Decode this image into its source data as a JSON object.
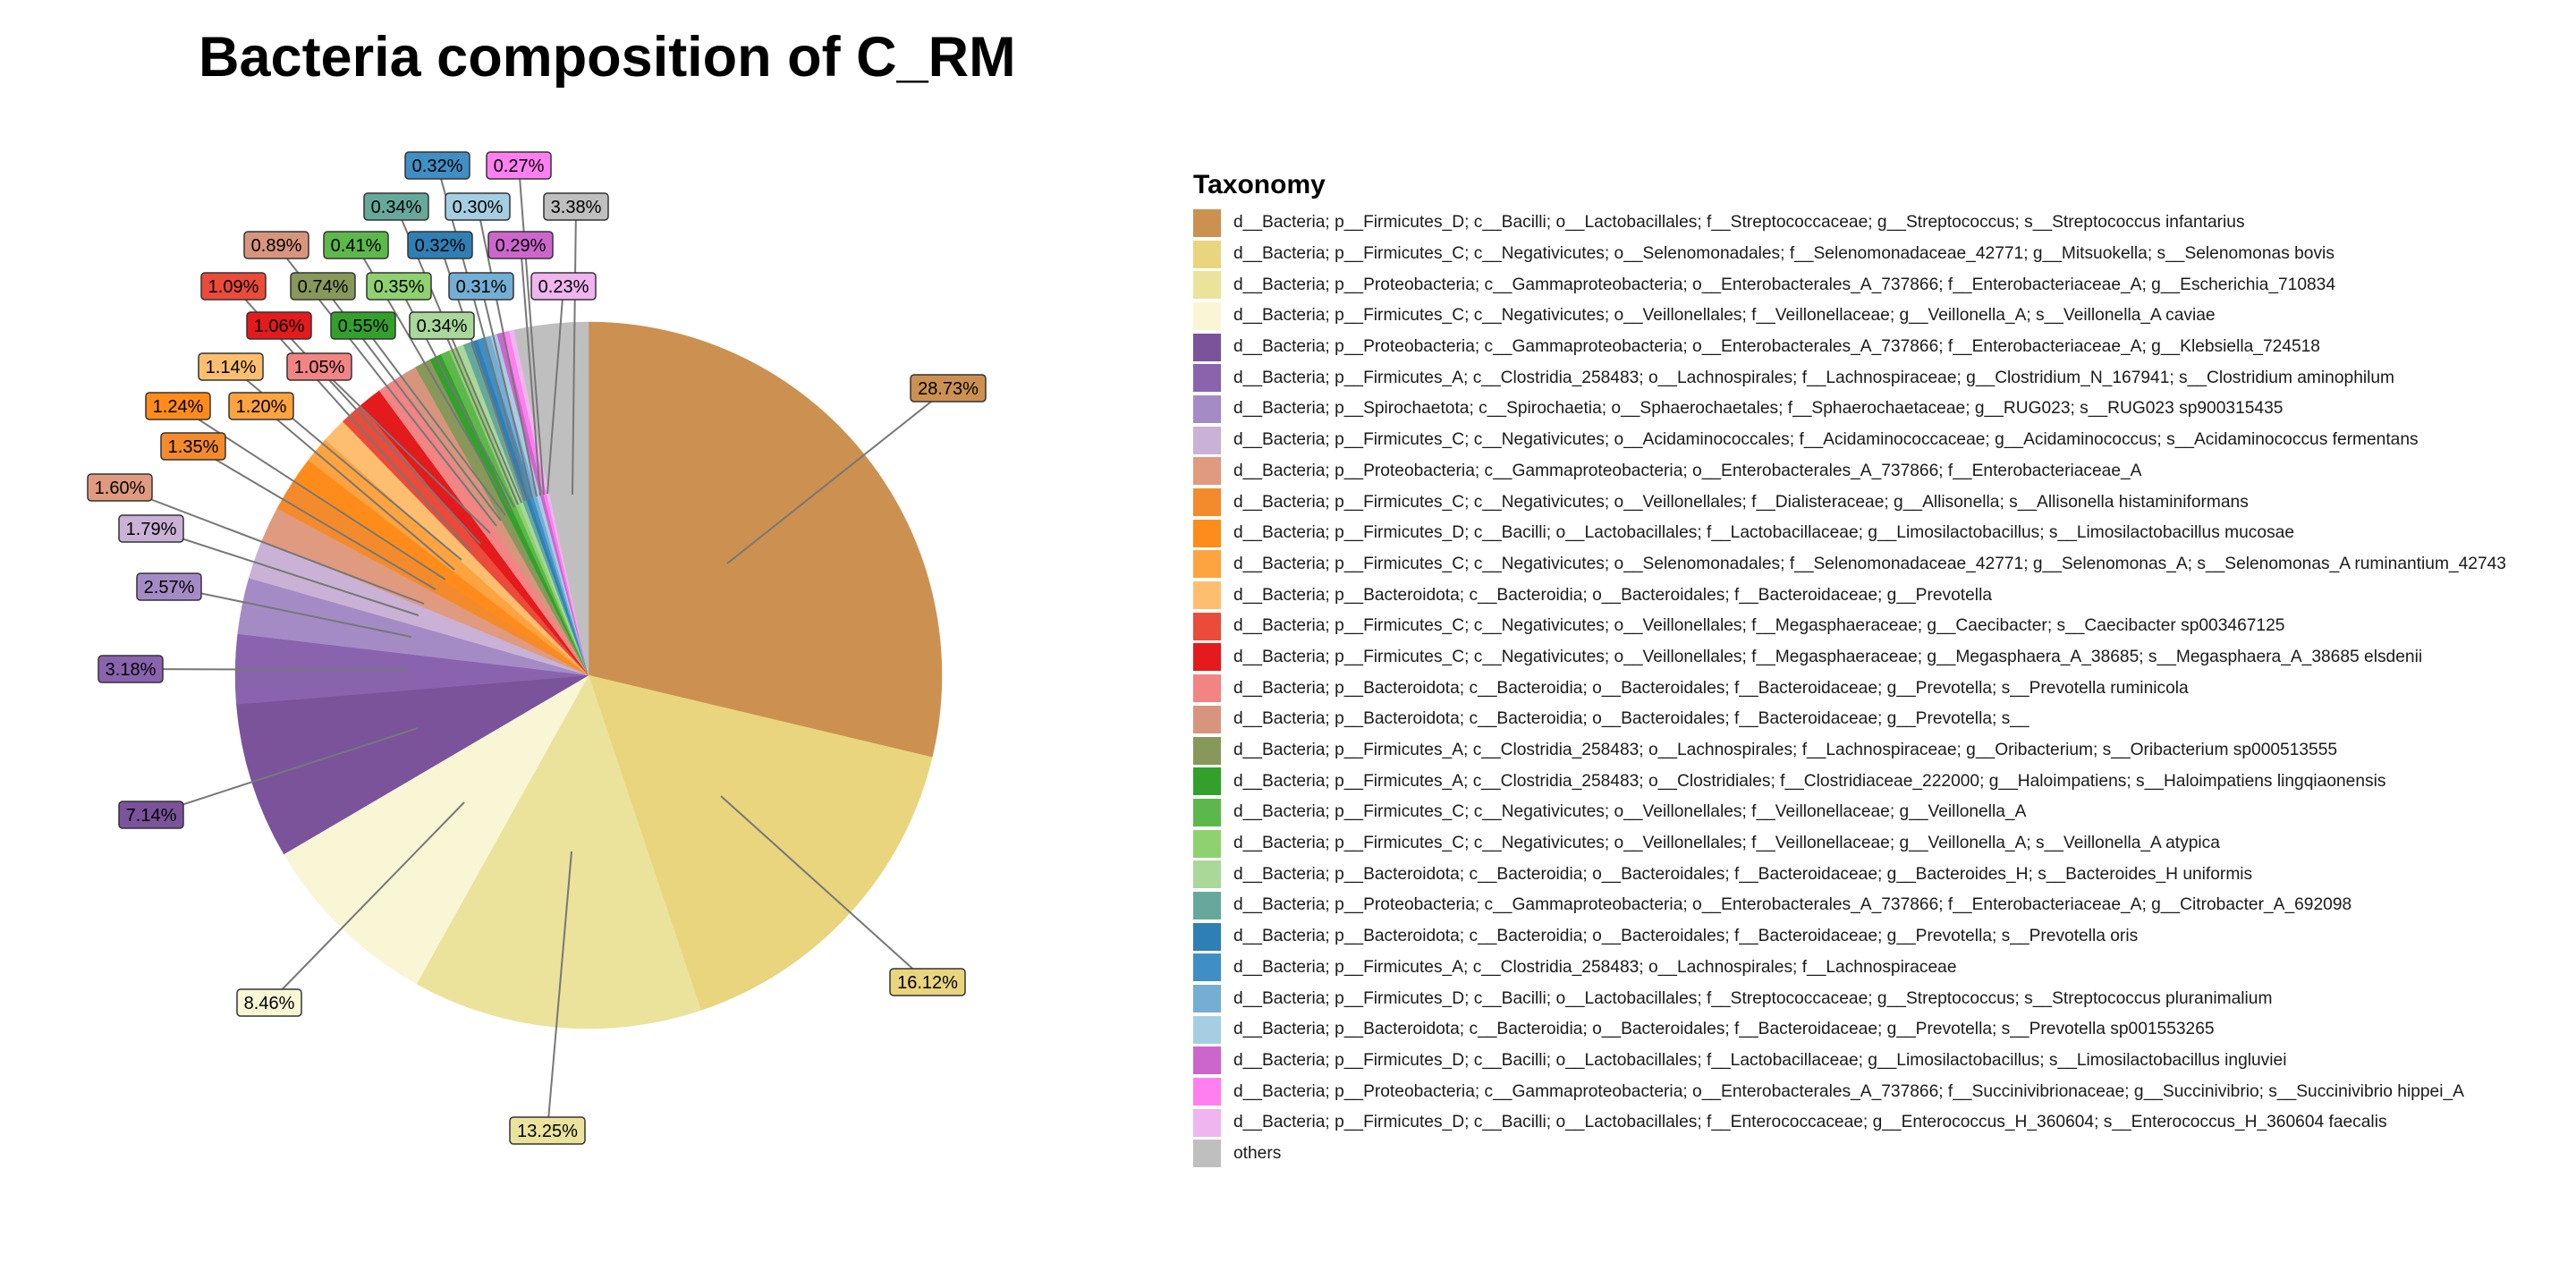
{
  "chart_data": {
    "type": "pie",
    "title": "Bacteria composition of C_RM",
    "legend_title": "Taxonomy",
    "legend_position": "right",
    "slices": [
      {
        "label": "d__Bacteria; p__Firmicutes_D; c__Bacilli; o__Lactobacillales; f__Streptococcaceae; g__Streptococcus; s__Streptococcus infantarius",
        "value": 28.73,
        "text": "28.73%",
        "color": "#CC9150"
      },
      {
        "label": "d__Bacteria; p__Firmicutes_C; c__Negativicutes; o__Selenomonadales; f__Selenomonadaceae_42771; g__Mitsuokella; s__Selenomonas bovis",
        "value": 16.12,
        "text": "16.12%",
        "color": "#E9D57E"
      },
      {
        "label": "d__Bacteria; p__Proteobacteria; c__Gammaproteobacteria; o__Enterobacterales_A_737866; f__Enterobacteriaceae_A; g__Escherichia_710834",
        "value": 13.25,
        "text": "13.25%",
        "color": "#EBE39C"
      },
      {
        "label": "d__Bacteria; p__Firmicutes_C; c__Negativicutes; o__Veillonellales; f__Veillonellaceae; g__Veillonella_A; s__Veillonella_A caviae",
        "value": 8.46,
        "text": "8.46%",
        "color": "#F8F6D5"
      },
      {
        "label": "d__Bacteria; p__Proteobacteria; c__Gammaproteobacteria; o__Enterobacterales_A_737866; f__Enterobacteriaceae_A; g__Klebsiella_724518",
        "value": 7.14,
        "text": "7.14%",
        "color": "#7A539B"
      },
      {
        "label": "d__Bacteria; p__Firmicutes_A; c__Clostridia_258483; o__Lachnospirales; f__Lachnospiraceae; g__Clostridium_N_167941; s__Clostridium aminophilum",
        "value": 3.18,
        "text": "3.18%",
        "color": "#8A63AE"
      },
      {
        "label": "d__Bacteria; p__Spirochaetota; c__Spirochaetia; o__Sphaerochaetales; f__Sphaerochaetaceae; g__RUG023; s__RUG023 sp900315435",
        "value": 2.57,
        "text": "2.57%",
        "color": "#A58BC6"
      },
      {
        "label": "d__Bacteria; p__Firmicutes_C; c__Negativicutes; o__Acidaminococcales; f__Acidaminococcaceae; g__Acidaminococcus; s__Acidaminococcus fermentans",
        "value": 1.79,
        "text": "1.79%",
        "color": "#C9B2D6"
      },
      {
        "label": "d__Bacteria; p__Proteobacteria; c__Gammaproteobacteria; o__Enterobacterales_A_737866; f__Enterobacteriaceae_A",
        "value": 1.6,
        "text": "1.60%",
        "color": "#E09A7F"
      },
      {
        "label": "d__Bacteria; p__Firmicutes_C; c__Negativicutes; o__Veillonellales; f__Dialisteraceae; g__Allisonella; s__Allisonella histaminiformans",
        "value": 1.35,
        "text": "1.35%",
        "color": "#F38B2C"
      },
      {
        "label": "d__Bacteria; p__Firmicutes_D; c__Bacilli; o__Lactobacillales; f__Lactobacillaceae; g__Limosilactobacillus; s__Limosilactobacillus mucosae",
        "value": 1.24,
        "text": "1.24%",
        "color": "#FF8C1A"
      },
      {
        "label": "d__Bacteria; p__Firmicutes_C; c__Negativicutes; o__Selenomonadales; f__Selenomonadaceae_42771; g__Selenomonas_A; s__Selenomonas_A ruminantium_42743",
        "value": 1.2,
        "text": "1.20%",
        "color": "#FDA33F"
      },
      {
        "label": "d__Bacteria; p__Bacteroidota; c__Bacteroidia; o__Bacteroidales; f__Bacteroidaceae; g__Prevotella",
        "value": 1.14,
        "text": "1.14%",
        "color": "#FDBF6F"
      },
      {
        "label": "d__Bacteria; p__Firmicutes_C; c__Negativicutes; o__Veillonellales; f__Megasphaeraceae; g__Caecibacter; s__Caecibacter sp003467125",
        "value": 1.09,
        "text": "1.09%",
        "color": "#EB4B3A"
      },
      {
        "label": "d__Bacteria; p__Firmicutes_C; c__Negativicutes; o__Veillonellales; f__Megasphaeraceae; g__Megasphaera_A_38685; s__Megasphaera_A_38685 elsdenii",
        "value": 1.06,
        "text": "1.06%",
        "color": "#E41A1C"
      },
      {
        "label": "d__Bacteria; p__Bacteroidota; c__Bacteroidia; o__Bacteroidales; f__Bacteroidaceae; g__Prevotella; s__Prevotella ruminicola",
        "value": 1.05,
        "text": "1.05%",
        "color": "#F28484"
      },
      {
        "label": "d__Bacteria; p__Bacteroidota; c__Bacteroidia; o__Bacteroidales; f__Bacteroidaceae; g__Prevotella; s__",
        "value": 0.89,
        "text": "0.89%",
        "color": "#D8957E"
      },
      {
        "label": "d__Bacteria; p__Firmicutes_A; c__Clostridia_258483; o__Lachnospirales; f__Lachnospiraceae; g__Oribacterium; s__Oribacterium sp000513555",
        "value": 0.74,
        "text": "0.74%",
        "color": "#87985A"
      },
      {
        "label": "d__Bacteria; p__Firmicutes_A; c__Clostridia_258483; o__Clostridiales; f__Clostridiaceae_222000; g__Haloimpatiens; s__Haloimpatiens lingqiaonensis",
        "value": 0.55,
        "text": "0.55%",
        "color": "#33A02C"
      },
      {
        "label": "d__Bacteria; p__Firmicutes_C; c__Negativicutes; o__Veillonellales; f__Veillonellaceae; g__Veillonella_A",
        "value": 0.41,
        "text": "0.41%",
        "color": "#5DB84B"
      },
      {
        "label": "d__Bacteria; p__Firmicutes_C; c__Negativicutes; o__Veillonellales; f__Veillonellaceae; g__Veillonella_A; s__Veillonella_A atypica",
        "value": 0.35,
        "text": "0.35%",
        "color": "#8FD16F"
      },
      {
        "label": "d__Bacteria; p__Bacteroidota; c__Bacteroidia; o__Bacteroidales; f__Bacteroidaceae; g__Bacteroides_H; s__Bacteroides_H uniformis",
        "value": 0.34,
        "text": "0.34%",
        "color": "#A9D89A"
      },
      {
        "label": "d__Bacteria; p__Proteobacteria; c__Gammaproteobacteria; o__Enterobacterales_A_737866; f__Enterobacteriaceae_A; g__Citrobacter_A_692098",
        "value": 0.34,
        "text": "0.34%",
        "color": "#66A99B"
      },
      {
        "label": "d__Bacteria; p__Bacteroidota; c__Bacteroidia; o__Bacteroidales; f__Bacteroidaceae; g__Prevotella; s__Prevotella oris",
        "value": 0.32,
        "text": "0.32%",
        "color": "#2E7FB3"
      },
      {
        "label": "d__Bacteria; p__Firmicutes_A; c__Clostridia_258483; o__Lachnospirales; f__Lachnospiraceae",
        "value": 0.32,
        "text": "0.32%",
        "color": "#3F8FC4"
      },
      {
        "label": "d__Bacteria; p__Firmicutes_D; c__Bacilli; o__Lactobacillales; f__Streptococcaceae; g__Streptococcus; s__Streptococcus pluranimalium",
        "value": 0.31,
        "text": "0.31%",
        "color": "#74AED4"
      },
      {
        "label": "d__Bacteria; p__Bacteroidota; c__Bacteroidia; o__Bacteroidales; f__Bacteroidaceae; g__Prevotella; s__Prevotella sp001553265",
        "value": 0.3,
        "text": "0.30%",
        "color": "#A6CEE3"
      },
      {
        "label": "d__Bacteria; p__Firmicutes_D; c__Bacilli; o__Lactobacillales; f__Lactobacillaceae; g__Limosilactobacillus; s__Limosilactobacillus ingluviei",
        "value": 0.29,
        "text": "0.29%",
        "color": "#CC66CC"
      },
      {
        "label": "d__Bacteria; p__Proteobacteria; c__Gammaproteobacteria; o__Enterobacterales_A_737866; f__Succinivibrionaceae; g__Succinivibrio; s__Succinivibrio hippei_A",
        "value": 0.27,
        "text": "0.27%",
        "color": "#FF7FF0"
      },
      {
        "label": "d__Bacteria; p__Firmicutes_D; c__Bacilli; o__Lactobacillales; f__Enterococcaceae; g__Enterococcus_H_360604; s__Enterococcus_H_360604 faecalis",
        "value": 0.23,
        "text": "0.23%",
        "color": "#EFB5EE"
      },
      {
        "label": "others",
        "value": 3.38,
        "text": "3.38%",
        "color": "#BFBFBF"
      }
    ]
  }
}
